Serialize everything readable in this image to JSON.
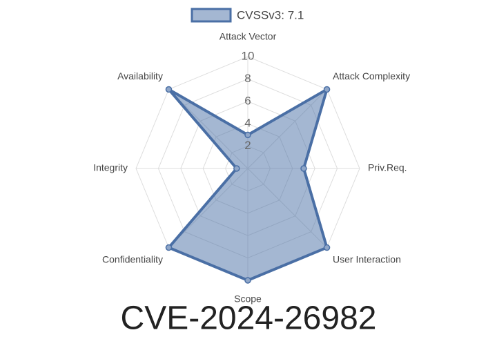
{
  "chart_data": {
    "type": "radar",
    "title": "CVE-2024-26982",
    "categories": [
      "Attack Vector",
      "Attack Complexity",
      "Priv.Req.",
      "User Interaction",
      "Scope",
      "Confidentiality",
      "Integrity",
      "Availability"
    ],
    "series": [
      {
        "name": "CVSSv3: 7.1",
        "color": "#4a6fa5",
        "values": [
          3,
          10,
          5,
          10,
          10,
          10,
          1,
          10
        ]
      }
    ],
    "rlim": [
      0,
      10
    ],
    "rticks": [
      2,
      4,
      6,
      8,
      10
    ],
    "grid": true,
    "legend": "top"
  }
}
